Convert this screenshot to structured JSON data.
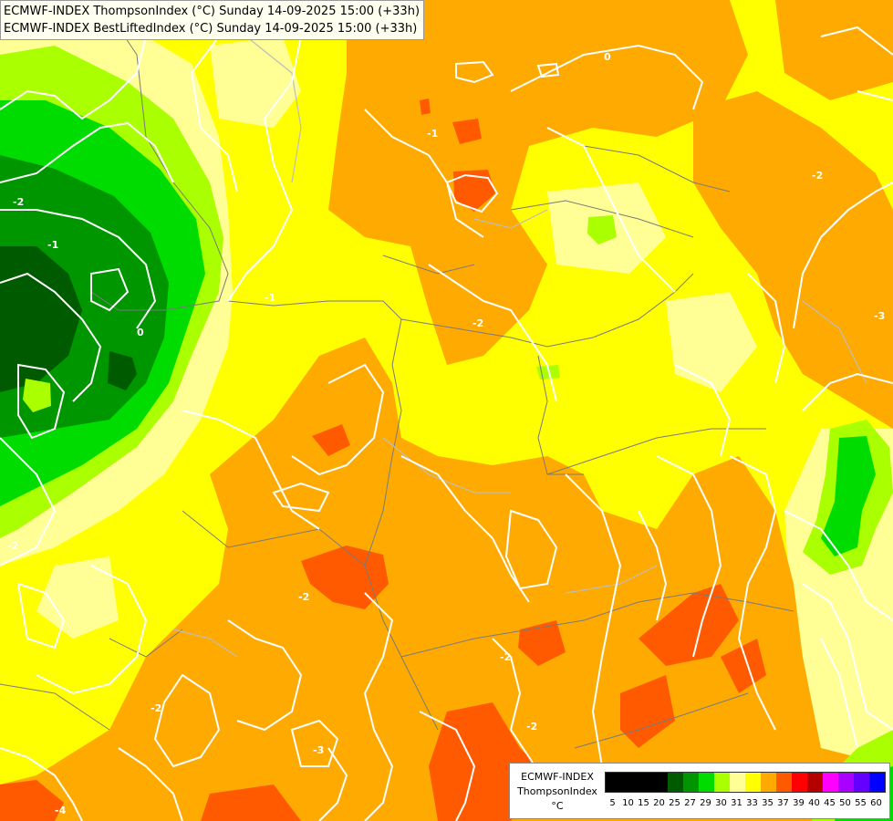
{
  "title": {
    "line1": "ECMWF-INDEX ThompsonIndex (°C) Sunday 14-09-2025 15:00 (+33h)",
    "line2": "ECMWF-INDEX BestLiftedIndex (°C) Sunday 14-09-2025 15:00 (+33h)"
  },
  "legend": {
    "title_line1": "ECMWF-INDEX",
    "title_line2": "ThompsonIndex",
    "unit": "°C",
    "entries": [
      {
        "value": "5",
        "color": "#000000"
      },
      {
        "value": "10",
        "color": "#000000"
      },
      {
        "value": "15",
        "color": "#000000"
      },
      {
        "value": "20",
        "color": "#000000"
      },
      {
        "value": "25",
        "color": "#005a00"
      },
      {
        "value": "27",
        "color": "#009600"
      },
      {
        "value": "29",
        "color": "#00dc00"
      },
      {
        "value": "30",
        "color": "#aaff00"
      },
      {
        "value": "31",
        "color": "#ffff96"
      },
      {
        "value": "33",
        "color": "#ffff00"
      },
      {
        "value": "35",
        "color": "#ffaa00"
      },
      {
        "value": "37",
        "color": "#ff5a00"
      },
      {
        "value": "39",
        "color": "#ff0000"
      },
      {
        "value": "40",
        "color": "#b40000"
      },
      {
        "value": "45",
        "color": "#ff00ff"
      },
      {
        "value": "50",
        "color": "#aa00ff"
      },
      {
        "value": "55",
        "color": "#6400ff"
      },
      {
        "value": "60",
        "color": "#0000ff"
      }
    ]
  },
  "contour_labels": [
    "-2",
    "-1",
    "0",
    "-2",
    "-1",
    "-2",
    "-2",
    "-2",
    "-3",
    "-1",
    "0",
    "-2",
    "-3",
    "-2",
    "-2",
    "-4"
  ],
  "colors": {
    "dark_green": "#005a00",
    "green": "#009600",
    "light_green": "#00dc00",
    "lime": "#aaff00",
    "pale_yellow": "#ffff96",
    "yellow": "#ffff00",
    "orange": "#ffaa00",
    "red_orange": "#ff5a00",
    "contour": "#ffffff",
    "border": "#7a7a7a"
  }
}
